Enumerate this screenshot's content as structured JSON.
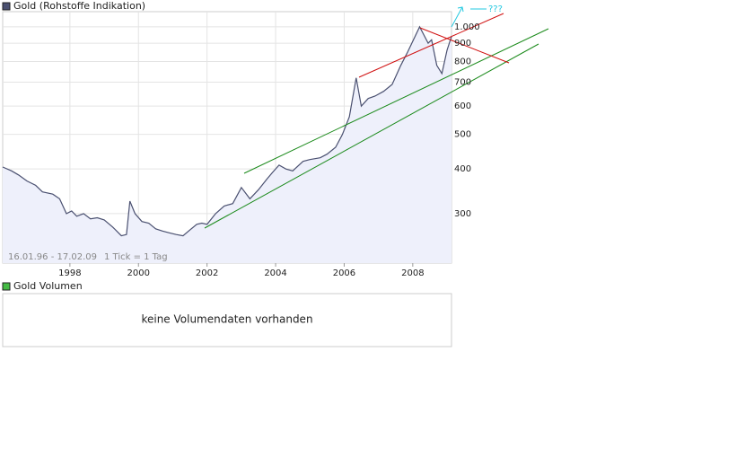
{
  "chart_data": {
    "type": "line",
    "series": [
      {
        "name": "Gold (Rohstoffe Indikation)",
        "color": "#4a5070",
        "values": [
          405,
          395,
          385,
          370,
          360,
          345,
          340,
          330,
          300,
          305,
          295,
          300,
          290,
          292,
          288,
          275,
          260,
          262,
          325,
          300,
          285,
          282,
          272,
          268,
          265,
          262,
          260,
          270,
          280,
          282,
          280,
          300,
          315,
          320,
          355,
          330,
          350,
          375,
          390,
          410,
          400,
          395,
          420,
          425,
          430,
          440,
          460,
          500,
          560,
          720,
          600,
          630,
          640,
          660,
          690,
          780,
          850,
          1000,
          900,
          920,
          780,
          740,
          860,
          940
        ]
      }
    ],
    "x": [
      1996.04,
      1996.3,
      1996.5,
      1996.75,
      1997.0,
      1997.2,
      1997.5,
      1997.7,
      1997.9,
      1998.05,
      1998.2,
      1998.4,
      1998.6,
      1998.8,
      1999.0,
      1999.25,
      1999.5,
      1999.65,
      1999.75,
      1999.9,
      2000.1,
      2000.3,
      2000.5,
      2000.7,
      2000.9,
      2001.1,
      2001.3,
      2001.5,
      2001.7,
      2001.85,
      2002.0,
      2002.25,
      2002.5,
      2002.75,
      2003.0,
      2003.25,
      2003.5,
      2003.75,
      2003.9,
      2004.1,
      2004.3,
      2004.5,
      2004.8,
      2005.0,
      2005.3,
      2005.5,
      2005.75,
      2005.95,
      2006.15,
      2006.35,
      2006.5,
      2006.7,
      2006.9,
      2007.15,
      2007.4,
      2007.65,
      2007.85,
      2008.2,
      2008.45,
      2008.55,
      2008.7,
      2008.85,
      2009.0,
      2009.13
    ],
    "xlim": [
      1996.04,
      2009.13
    ],
    "xticks": [
      1998,
      2000,
      2002,
      2004,
      2006,
      2008
    ],
    "ylim": [
      218,
      1103
    ],
    "yticks": [
      300,
      400,
      500,
      600,
      700,
      800,
      900,
      {
        "value": 1000,
        "label": "1.000"
      }
    ],
    "log_scale": true,
    "grid": true,
    "fill": "#eef0fb",
    "annotations": [
      "16.01.96 - 17.02.09",
      "1 Tick = 1 Tag",
      "???"
    ]
  },
  "volume": {
    "legend": "Gold Volumen",
    "color": "#44bb44",
    "message": "keine Volumendaten vorhanden"
  }
}
